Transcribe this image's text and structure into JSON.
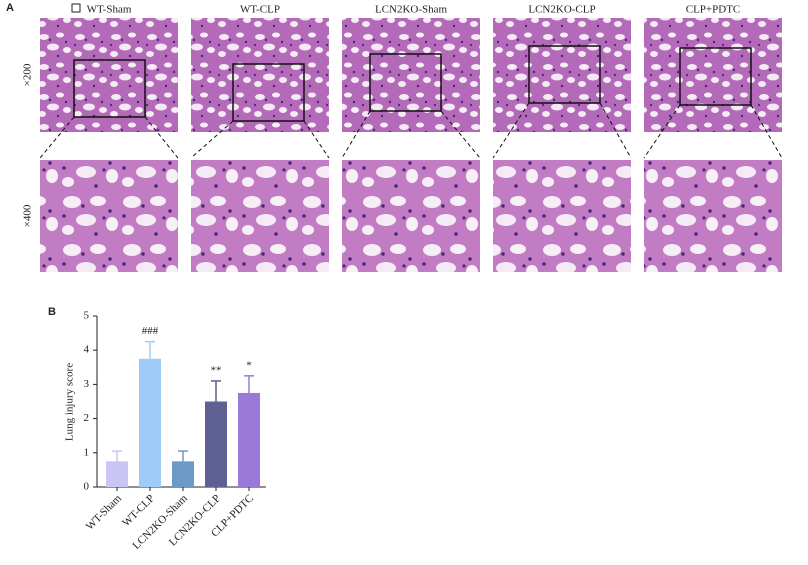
{
  "panel_a": {
    "letter": "A",
    "columns": [
      "WT-Sham",
      "WT-CLP",
      "LCN2KO-Sham",
      "LCN2KO-CLP",
      "CLP+PDTC"
    ],
    "rows": [
      "×200",
      "×400"
    ]
  },
  "chart_data": {
    "type": "bar",
    "panel": "B",
    "ylabel": "Lung injury score",
    "categories": [
      "WT-Sham",
      "WT-CLP",
      "LCN2KO-Sham",
      "LCN2KO-CLP",
      "CLP+PDTC"
    ],
    "values": [
      0.75,
      3.75,
      0.75,
      2.5,
      2.75
    ],
    "errors": [
      0.3,
      0.5,
      0.3,
      0.6,
      0.5
    ],
    "annotations": [
      null,
      "###",
      null,
      "**",
      "*"
    ],
    "colors": [
      "#c9c6f5",
      "#9ecbf7",
      "#6c9ac6",
      "#5e5f93",
      "#9b79d9"
    ],
    "ylim": [
      0,
      5
    ],
    "yticks": [
      0,
      1,
      2,
      3,
      4,
      5
    ]
  }
}
